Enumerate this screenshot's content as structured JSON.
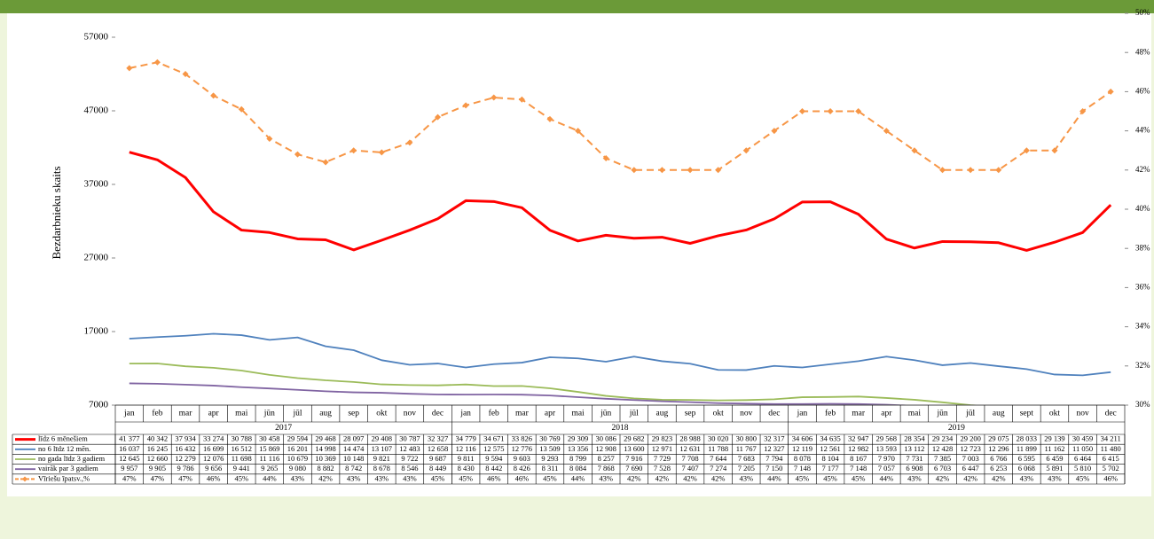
{
  "chart_data": {
    "type": "line",
    "y_label": "Bezdarbnieku skaits",
    "categories": [
      "jan",
      "feb",
      "mar",
      "apr",
      "mai",
      "jūn",
      "jūl",
      "aug",
      "sep",
      "okt",
      "nov",
      "dec",
      "jan",
      "feb",
      "mar",
      "apr",
      "mai",
      "jūn",
      "jūl",
      "aug",
      "sep",
      "okt",
      "nov",
      "dec",
      "jan",
      "feb",
      "mar",
      "apr",
      "mai",
      "jūn",
      "jūl",
      "aug",
      "sept",
      "okt",
      "nov",
      "dec"
    ],
    "groups": [
      "2017",
      "2018",
      "2019"
    ],
    "ylim": [
      7000,
      57000
    ],
    "yticks": [
      7000,
      17000,
      27000,
      37000,
      47000,
      57000
    ],
    "y2lim": [
      30,
      50
    ],
    "y2ticks": [
      {
        "value": 30,
        "label": "30%"
      },
      {
        "value": 32,
        "label": "32%"
      },
      {
        "value": 34,
        "label": "34%"
      },
      {
        "value": 36,
        "label": "36%"
      },
      {
        "value": 38,
        "label": "38%"
      },
      {
        "value": 40,
        "label": "40%"
      },
      {
        "value": 42,
        "label": "42%"
      },
      {
        "value": 44,
        "label": "44%"
      },
      {
        "value": 46,
        "label": "46%"
      },
      {
        "value": 48,
        "label": "48%"
      },
      {
        "value": 50,
        "label": "50%"
      }
    ],
    "series": [
      {
        "name": "līdz 6 mēnešiem",
        "color": "#ff0000",
        "width": 3,
        "values": [
          41377,
          40342,
          37934,
          33274,
          30788,
          30458,
          29594,
          29468,
          28097,
          29408,
          30787,
          32327,
          34779,
          34671,
          33826,
          30769,
          29309,
          30086,
          29682,
          29823,
          28988,
          30020,
          30800,
          32317,
          34606,
          34635,
          32947,
          29568,
          28354,
          29234,
          29200,
          29075,
          28033,
          29139,
          30459,
          34211
        ],
        "value_labels": [
          "41 377",
          "40 342",
          "37 934",
          "33 274",
          "30 788",
          "30 458",
          "29 594",
          "29 468",
          "28 097",
          "29 408",
          "30 787",
          "32 327",
          "34 779",
          "34 671",
          "33 826",
          "30 769",
          "29 309",
          "30 086",
          "29 682",
          "29 823",
          "28 988",
          "30 020",
          "30 800",
          "32 317",
          "34 606",
          "34 635",
          "32 947",
          "29 568",
          "28 354",
          "29 234",
          "29 200",
          "29 075",
          "28 033",
          "29 139",
          "30 459",
          "34 211"
        ]
      },
      {
        "name": "no 6 līdz 12 mēn.",
        "color": "#4f81bd",
        "width": 1.8,
        "values": [
          16037,
          16245,
          16432,
          16699,
          16512,
          15869,
          16201,
          14998,
          14474,
          13107,
          12483,
          12658,
          12116,
          12575,
          12776,
          13509,
          13356,
          12908,
          13600,
          12971,
          12631,
          11788,
          11767,
          12327,
          12119,
          12561,
          12982,
          13593,
          13112,
          12428,
          12723,
          12296,
          11899,
          11162,
          11050,
          11480
        ],
        "value_labels": [
          "16 037",
          "16 245",
          "16 432",
          "16 699",
          "16 512",
          "15 869",
          "16 201",
          "14 998",
          "14 474",
          "13 107",
          "12 483",
          "12 658",
          "12 116",
          "12 575",
          "12 776",
          "13 509",
          "13 356",
          "12 908",
          "13 600",
          "12 971",
          "12 631",
          "11 788",
          "11 767",
          "12 327",
          "12 119",
          "12 561",
          "12 982",
          "13 593",
          "13 112",
          "12 428",
          "12 723",
          "12 296",
          "11 899",
          "11 162",
          "11 050",
          "11 480"
        ]
      },
      {
        "name": "no gada līdz 3 gadiem",
        "color": "#9bbb59",
        "width": 1.8,
        "values": [
          12645,
          12660,
          12279,
          12076,
          11698,
          11116,
          10679,
          10369,
          10148,
          9821,
          9722,
          9687,
          9811,
          9594,
          9603,
          9293,
          8799,
          8257,
          7916,
          7729,
          7708,
          7644,
          7683,
          7794,
          8078,
          8104,
          8167,
          7970,
          7731,
          7385,
          7003,
          6766,
          6595,
          6459,
          6464,
          6415
        ],
        "value_labels": [
          "12 645",
          "12 660",
          "12 279",
          "12 076",
          "11 698",
          "11 116",
          "10 679",
          "10 369",
          "10 148",
          "9 821",
          "9 722",
          "9 687",
          "9 811",
          "9 594",
          "9 603",
          "9 293",
          "8 799",
          "8 257",
          "7 916",
          "7 729",
          "7 708",
          "7 644",
          "7 683",
          "7 794",
          "8 078",
          "8 104",
          "8 167",
          "7 970",
          "7 731",
          "7 385",
          "7 003",
          "6 766",
          "6 595",
          "6 459",
          "6 464",
          "6 415"
        ]
      },
      {
        "name": "vairāk par 3 gadiem",
        "color": "#8064a2",
        "width": 1.8,
        "values": [
          9957,
          9905,
          9786,
          9656,
          9441,
          9265,
          9080,
          8882,
          8742,
          8678,
          8546,
          8449,
          8430,
          8442,
          8426,
          8311,
          8084,
          7868,
          7690,
          7528,
          7407,
          7274,
          7205,
          7150,
          7148,
          7177,
          7148,
          7057,
          6908,
          6703,
          6447,
          6253,
          6068,
          5891,
          5810,
          5702
        ],
        "value_labels": [
          "9 957",
          "9 905",
          "9 786",
          "9 656",
          "9 441",
          "9 265",
          "9 080",
          "8 882",
          "8 742",
          "8 678",
          "8 546",
          "8 449",
          "8 430",
          "8 442",
          "8 426",
          "8 311",
          "8 084",
          "7 868",
          "7 690",
          "7 528",
          "7 407",
          "7 274",
          "7 205",
          "7 150",
          "7 148",
          "7 177",
          "7 148",
          "7 057",
          "6 908",
          "6 703",
          "6 447",
          "6 253",
          "6 068",
          "5 891",
          "5 810",
          "5 702"
        ]
      },
      {
        "name": "Vīriešu īpatsv.,%",
        "color": "#f79646",
        "width": 2,
        "dashed": true,
        "markers": true,
        "axis": "y2",
        "values": [
          47.2,
          47.5,
          46.9,
          45.8,
          45.1,
          43.6,
          42.8,
          42.4,
          43.0,
          42.9,
          43.4,
          44.7,
          45.3,
          45.7,
          45.6,
          44.6,
          44.0,
          42.6,
          42.0,
          42.0,
          42.0,
          42.0,
          43.0,
          44.0,
          45.0,
          45.0,
          45.0,
          44.0,
          43.0,
          42.0,
          42.0,
          42.0,
          43.0,
          43.0,
          45.0,
          46.0
        ],
        "value_labels": [
          "47%",
          "47%",
          "47%",
          "46%",
          "45%",
          "44%",
          "43%",
          "42%",
          "43%",
          "43%",
          "43%",
          "45%",
          "45%",
          "46%",
          "46%",
          "45%",
          "44%",
          "43%",
          "42%",
          "42%",
          "42%",
          "42%",
          "43%",
          "44%",
          "45%",
          "45%",
          "45%",
          "44%",
          "43%",
          "42%",
          "42%",
          "42%",
          "43%",
          "43%",
          "45%",
          "46%"
        ]
      }
    ]
  }
}
